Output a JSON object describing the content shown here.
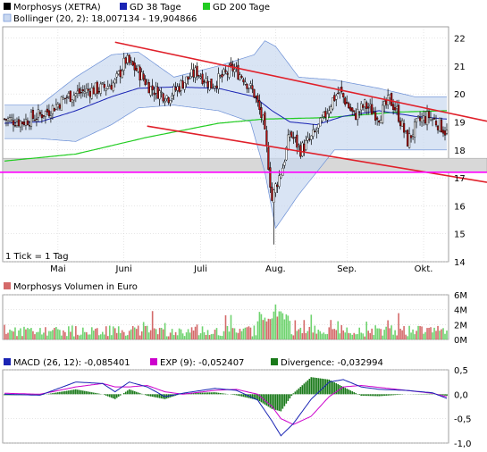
{
  "colors": {
    "price": "#000000",
    "up_candle": "#ffffff",
    "down_candle": "#b01010",
    "gd38": "#1a24b4",
    "gd200": "#22cc22",
    "bollinger_band": "#c9d8f0",
    "bollinger_line": "#6b8fd6",
    "trend_red": "#e0202a",
    "support_magenta": "#ff00ff",
    "gray_box": "#d8d8d8",
    "vol_up": "#6fd36f",
    "vol_down": "#d46a6a",
    "macd": "#1a24b4",
    "exp": "#cc00cc",
    "divergence": "#1a7a1a",
    "grid": "#cccccc"
  },
  "price_chart": {
    "legend": [
      {
        "label": "Morphosys (XETRA)",
        "swatch": "#000000"
      },
      {
        "label": "GD 38 Tage",
        "swatch": "#1a24b4"
      },
      {
        "label": "GD 200 Tage",
        "swatch": "#22cc22"
      },
      {
        "label": "Bollinger (20, 2): 18,007134 - 19,904866",
        "swatch": "#c9d8f0"
      }
    ],
    "yticks": [
      "22",
      "21",
      "20",
      "19",
      "18",
      "17",
      "16",
      "15",
      "14"
    ],
    "xticks": [
      "Mai",
      "Juni",
      "Juli",
      "Aug.",
      "Sep.",
      "Okt."
    ],
    "footnote": "1 Tick = 1 Tag"
  },
  "volume_chart": {
    "legend": [
      {
        "label": "Morphosys Volumen in Euro",
        "swatch": "#d46a6a"
      }
    ],
    "yticks": [
      "6M",
      "4M",
      "2M",
      "0M"
    ]
  },
  "macd_chart": {
    "legend": [
      {
        "label": "MACD (26, 12): -0,085401",
        "swatch": "#1a24b4"
      },
      {
        "label": "EXP (9): -0,052407",
        "swatch": "#cc00cc"
      },
      {
        "label": "Divergence: -0,032994",
        "swatch": "#1a7a1a"
      }
    ],
    "yticks": [
      "0,5",
      "0,0",
      "-0,5",
      "-1,0"
    ]
  },
  "chart_data": [
    {
      "type": "line",
      "title": "Morphosys (XETRA)",
      "ylim": [
        14,
        22.4
      ],
      "x_ticks": [
        "Mai",
        "Juni",
        "Juli",
        "Aug.",
        "Sep.",
        "Okt."
      ],
      "anchors": {
        "close": [
          [
            0,
            19.1
          ],
          [
            10,
            19.0
          ],
          [
            18,
            19.2
          ],
          [
            25,
            19.4
          ],
          [
            35,
            19.9
          ],
          [
            45,
            20.1
          ],
          [
            55,
            20.2
          ],
          [
            62,
            20.4
          ],
          [
            68,
            21.2
          ],
          [
            75,
            20.8
          ],
          [
            82,
            20.2
          ],
          [
            92,
            19.9
          ],
          [
            100,
            20.4
          ],
          [
            108,
            20.8
          ],
          [
            116,
            20.3
          ],
          [
            122,
            20.6
          ],
          [
            128,
            20.9
          ],
          [
            134,
            20.6
          ],
          [
            140,
            20.0
          ],
          [
            145,
            19.0
          ],
          [
            148,
            17.5
          ],
          [
            150,
            16.2
          ],
          [
            152,
            16.7
          ],
          [
            156,
            17.4
          ],
          [
            160,
            18.6
          ],
          [
            166,
            18.0
          ],
          [
            172,
            18.4
          ],
          [
            178,
            19.0
          ],
          [
            184,
            19.8
          ],
          [
            188,
            20.1
          ],
          [
            196,
            19.2
          ],
          [
            202,
            19.6
          ],
          [
            210,
            19.2
          ],
          [
            216,
            19.8
          ],
          [
            220,
            19.4
          ],
          [
            226,
            18.3
          ],
          [
            232,
            19.0
          ],
          [
            238,
            19.2
          ],
          [
            244,
            18.9
          ],
          [
            248,
            18.6
          ]
        ],
        "gd38": [
          [
            0,
            18.95
          ],
          [
            20,
            19.0
          ],
          [
            40,
            19.4
          ],
          [
            60,
            19.9
          ],
          [
            75,
            20.2
          ],
          [
            95,
            20.25
          ],
          [
            120,
            20.2
          ],
          [
            140,
            19.9
          ],
          [
            150,
            19.4
          ],
          [
            160,
            19.0
          ],
          [
            175,
            18.9
          ],
          [
            190,
            19.2
          ],
          [
            210,
            19.4
          ],
          [
            230,
            19.2
          ],
          [
            248,
            19.1
          ]
        ],
        "gd200": [
          [
            0,
            17.6
          ],
          [
            40,
            17.85
          ],
          [
            80,
            18.45
          ],
          [
            120,
            18.95
          ],
          [
            145,
            19.1
          ],
          [
            180,
            19.15
          ],
          [
            220,
            19.35
          ],
          [
            248,
            19.4
          ]
        ],
        "boll_upper": [
          [
            0,
            19.6
          ],
          [
            20,
            19.6
          ],
          [
            40,
            20.6
          ],
          [
            60,
            21.4
          ],
          [
            75,
            21.5
          ],
          [
            95,
            20.6
          ],
          [
            120,
            21.0
          ],
          [
            140,
            21.4
          ],
          [
            146,
            21.9
          ],
          [
            152,
            21.7
          ],
          [
            165,
            20.6
          ],
          [
            185,
            20.5
          ],
          [
            210,
            20.2
          ],
          [
            230,
            19.9
          ],
          [
            248,
            19.9
          ]
        ],
        "boll_lower": [
          [
            0,
            18.4
          ],
          [
            20,
            18.4
          ],
          [
            40,
            18.3
          ],
          [
            60,
            18.9
          ],
          [
            75,
            19.5
          ],
          [
            95,
            19.6
          ],
          [
            120,
            19.4
          ],
          [
            138,
            19.0
          ],
          [
            146,
            17.2
          ],
          [
            152,
            15.2
          ],
          [
            165,
            16.4
          ],
          [
            185,
            18.0
          ],
          [
            210,
            18.0
          ],
          [
            230,
            18.0
          ],
          [
            248,
            18.0
          ]
        ]
      },
      "trendlines": [
        {
          "name": "upper",
          "from": [
            62,
            21.85
          ],
          "to": [
            265,
            19.1
          ]
        },
        {
          "name": "lower",
          "from": [
            80,
            18.85
          ],
          "to": [
            265,
            16.9
          ]
        }
      ],
      "support_level": 17.2,
      "shaded_zone": [
        17.2,
        17.7
      ]
    },
    {
      "type": "bar",
      "title": "Morphosys Volumen in Euro",
      "ylim": [
        0,
        6
      ],
      "notable_values": {
        "peak": 4.7,
        "typical": 1.2
      }
    },
    {
      "type": "line",
      "title": "MACD",
      "ylim": [
        -1.0,
        0.5
      ],
      "macd_anchors": [
        [
          0,
          0.0
        ],
        [
          20,
          -0.02
        ],
        [
          40,
          0.25
        ],
        [
          55,
          0.22
        ],
        [
          62,
          0.05
        ],
        [
          70,
          0.25
        ],
        [
          80,
          0.15
        ],
        [
          90,
          -0.05
        ],
        [
          100,
          0.02
        ],
        [
          118,
          0.12
        ],
        [
          130,
          0.08
        ],
        [
          142,
          -0.12
        ],
        [
          150,
          -0.55
        ],
        [
          155,
          -0.85
        ],
        [
          162,
          -0.6
        ],
        [
          172,
          -0.1
        ],
        [
          182,
          0.25
        ],
        [
          190,
          0.3
        ],
        [
          200,
          0.15
        ],
        [
          210,
          0.1
        ],
        [
          225,
          0.08
        ],
        [
          240,
          0.03
        ],
        [
          248,
          -0.085
        ]
      ],
      "exp_anchors": [
        [
          0,
          0.02
        ],
        [
          20,
          0.0
        ],
        [
          40,
          0.15
        ],
        [
          55,
          0.22
        ],
        [
          62,
          0.15
        ],
        [
          70,
          0.15
        ],
        [
          80,
          0.18
        ],
        [
          90,
          0.05
        ],
        [
          100,
          0.0
        ],
        [
          118,
          0.08
        ],
        [
          130,
          0.1
        ],
        [
          142,
          0.0
        ],
        [
          150,
          -0.25
        ],
        [
          155,
          -0.5
        ],
        [
          162,
          -0.62
        ],
        [
          172,
          -0.45
        ],
        [
          182,
          -0.05
        ],
        [
          190,
          0.15
        ],
        [
          200,
          0.18
        ],
        [
          210,
          0.14
        ],
        [
          225,
          0.08
        ],
        [
          240,
          0.02
        ],
        [
          248,
          -0.052
        ]
      ]
    }
  ]
}
